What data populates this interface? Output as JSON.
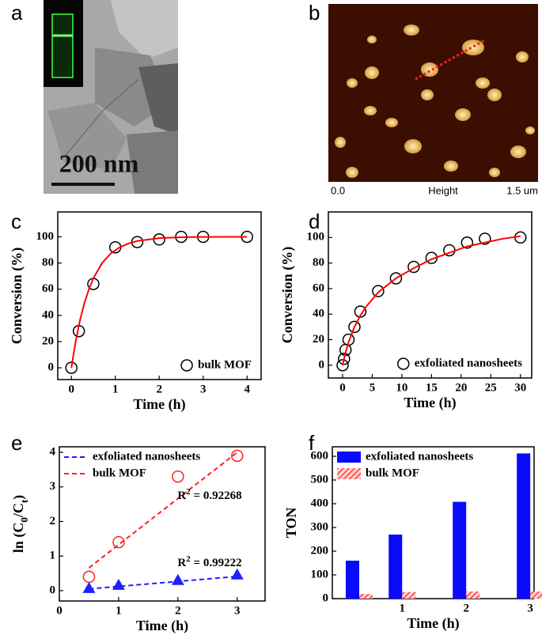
{
  "panels": {
    "labels": [
      "a",
      "b",
      "c",
      "d",
      "e",
      "f"
    ],
    "tem_scale": "200 nm",
    "afm_axis": [
      "0.0",
      "Height",
      "1.5 um"
    ]
  },
  "chart_data": [
    {
      "type": "scatter",
      "xlabel": "Time (h)",
      "ylabel": "Conversion (%)",
      "xlim": [
        -0.31,
        4.32
      ],
      "ylim": [
        -9,
        119
      ],
      "xticks": [
        0,
        1,
        2,
        3,
        4
      ],
      "yticks": [
        0,
        20,
        40,
        60,
        80,
        100
      ],
      "legend": "lower right",
      "series": [
        {
          "name": "bulk MOF",
          "marker": "open-circle",
          "color": "#000000",
          "x": [
            0,
            0.17,
            0.5,
            1,
            1.5,
            2,
            2.5,
            3,
            4
          ],
          "values": [
            0,
            28,
            64,
            92,
            96,
            98,
            100,
            100,
            100
          ]
        },
        {
          "line": "solid",
          "color": "#ff0000",
          "x": [
            0,
            0.1,
            0.2,
            0.3,
            0.4,
            0.5,
            0.7,
            0.9,
            1.1,
            1.3,
            1.5,
            2,
            2.5,
            3,
            3.5,
            4
          ],
          "values": [
            0,
            20.5,
            36.9,
            49.8,
            60.1,
            68.3,
            80,
            87.4,
            92,
            94.9,
            96.8,
            99,
            99.7,
            99.9,
            100,
            100
          ]
        }
      ]
    },
    {
      "type": "scatter",
      "xlabel": "Time (h)",
      "ylabel": "Conversion (%)",
      "xlim": [
        -2.4,
        31.9
      ],
      "ylim": [
        -10,
        120
      ],
      "xticks": [
        0,
        5,
        10,
        15,
        20,
        25,
        30
      ],
      "yticks": [
        0,
        20,
        40,
        60,
        80,
        100
      ],
      "legend": "lower right",
      "series": [
        {
          "name": "exfoliated nanosheets",
          "marker": "open-circle",
          "color": "#000000",
          "x": [
            0,
            0.25,
            0.5,
            1,
            2,
            3,
            6,
            9,
            12,
            15,
            18,
            21,
            24,
            30
          ],
          "values": [
            0,
            5,
            12,
            20,
            30,
            42,
            58,
            68,
            77,
            84,
            90,
            96,
            99,
            100
          ]
        },
        {
          "line": "solid",
          "color": "#ff0000",
          "x": [
            0,
            0.5,
            1,
            2,
            3,
            4,
            6,
            9,
            12,
            15,
            18,
            21,
            24,
            27,
            30
          ],
          "values": [
            0,
            10,
            18,
            30,
            39,
            46,
            57,
            68,
            76,
            83,
            88,
            93,
            96,
            99,
            101
          ]
        }
      ]
    },
    {
      "type": "scatter",
      "xlabel": "Time (h)",
      "ylabel": [
        "ln (C",
        "0",
        "/C",
        "t",
        ")"
      ],
      "xlim": [
        0,
        3.47
      ],
      "ylim": [
        -0.3,
        4.16
      ],
      "xticks": [
        0,
        1,
        2,
        3
      ],
      "yticks": [
        0,
        1,
        2,
        3,
        4
      ],
      "legend": "upper left",
      "series": [
        {
          "name": "exfoliated nanosheets",
          "line": "dashed",
          "color": "#1f1fff",
          "x": [
            0.5,
            3
          ],
          "values": [
            0.05,
            0.41
          ]
        },
        {
          "name": "bulk MOF",
          "line": "dashed",
          "color": "#ff2020",
          "x": [
            0.5,
            3
          ],
          "values": [
            0.66,
            4.0
          ]
        },
        {
          "marker": "open-circle",
          "color": "#ff2020",
          "x": [
            0.5,
            1,
            2,
            3
          ],
          "values": [
            0.4,
            1.4,
            3.3,
            3.9
          ]
        },
        {
          "marker": "triangle",
          "color": "#1f1fff",
          "x": [
            0.5,
            1,
            2,
            3
          ],
          "values": [
            0.07,
            0.16,
            0.3,
            0.46
          ]
        }
      ],
      "annotations": [
        {
          "base": "R",
          "sup": "2",
          "rest": " = 0.92268"
        },
        {
          "base": "R",
          "sup": "2",
          "rest": " = 0.99222"
        }
      ]
    },
    {
      "type": "bar",
      "xlabel": "Time (h)",
      "ylabel": "TON",
      "xlim": [
        -0.09,
        3.06
      ],
      "ylim": [
        0,
        640
      ],
      "xticks": [
        1,
        2,
        3
      ],
      "yticks": [
        0,
        100,
        200,
        300,
        400,
        500,
        600
      ],
      "legend": "upper left",
      "x": [
        0.33,
        1,
        2,
        3
      ],
      "series": [
        {
          "name": "exfoliated nanosheets",
          "color": "#0a0aff",
          "values": [
            160,
            270,
            408,
            612
          ]
        },
        {
          "name": "bulk MOF",
          "color": "#ff2020",
          "pattern": "hatch",
          "values": [
            20,
            28,
            30,
            30
          ]
        }
      ]
    }
  ]
}
